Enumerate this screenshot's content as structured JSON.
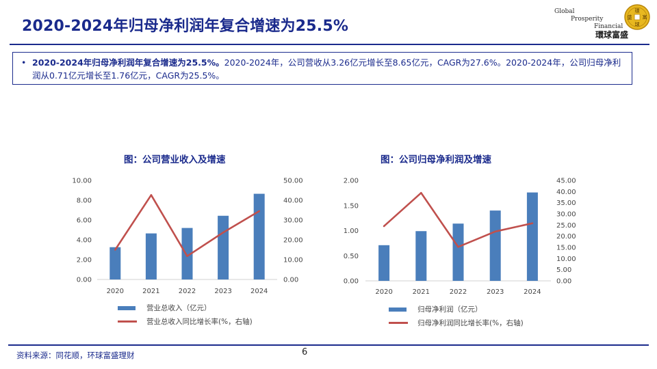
{
  "header": {
    "title": "2020-2024年归母净利润年复合增速为25.5%"
  },
  "logo": {
    "en_word1": "Global",
    "en_word2": "Prosperity",
    "en_word3": "Financial",
    "cn_name": "環球富盛",
    "coin_chars": [
      "環",
      "球",
      "富",
      "盛"
    ]
  },
  "summary": {
    "bullet": "•",
    "bold_text": "2020-2024年归母净利润年复合增速为25.5%。",
    "body_text": "2020-2024年，公司营收从3.26亿元增长至8.65亿元，CAGR为27.6%。2020-2024年，公司归母净利润从0.71亿元增长至1.76亿元，CAGR为25.5%。"
  },
  "chart_data": [
    {
      "type": "bar",
      "title": "图：公司营业收入及增速",
      "categories": [
        "2020",
        "2021",
        "2022",
        "2023",
        "2024"
      ],
      "series": [
        {
          "name": "营业总收入（亿元）",
          "kind": "bar",
          "axis": "left",
          "values": [
            3.26,
            4.65,
            5.2,
            6.43,
            8.65
          ]
        },
        {
          "name": "营业总收入同比增长率(%，右轴)",
          "kind": "line",
          "axis": "right",
          "values": [
            15.0,
            42.6,
            11.8,
            23.7,
            34.5
          ]
        }
      ],
      "y_left": {
        "ticks": [
          "0.00",
          "2.00",
          "4.00",
          "6.00",
          "8.00",
          "10.00"
        ],
        "range": [
          0,
          10
        ]
      },
      "y_right": {
        "ticks": [
          "0.00",
          "10.00",
          "20.00",
          "30.00",
          "40.00",
          "50.00"
        ],
        "range": [
          0,
          50
        ]
      },
      "colors": {
        "bar": "#4a7ebb",
        "line": "#c0504d"
      },
      "legend_position": "bottom"
    },
    {
      "type": "bar",
      "title": "图：公司归母净利润及增速",
      "categories": [
        "2020",
        "2021",
        "2022",
        "2023",
        "2024"
      ],
      "series": [
        {
          "name": "归母净利润（亿元）",
          "kind": "bar",
          "axis": "left",
          "values": [
            0.71,
            0.99,
            1.14,
            1.4,
            1.76
          ]
        },
        {
          "name": "归母净利润同比增长率(%，右轴)",
          "kind": "line",
          "axis": "right",
          "values": [
            24.5,
            39.4,
            15.2,
            22.1,
            25.8
          ]
        }
      ],
      "y_left": {
        "ticks": [
          "0.00",
          "0.50",
          "1.00",
          "1.50",
          "2.00"
        ],
        "range": [
          0,
          2
        ]
      },
      "y_right": {
        "ticks": [
          "0.00",
          "5.00",
          "10.00",
          "15.00",
          "20.00",
          "25.00",
          "30.00",
          "35.00",
          "40.00",
          "45.00"
        ],
        "range": [
          0,
          45
        ]
      },
      "colors": {
        "bar": "#4a7ebb",
        "line": "#c0504d"
      },
      "legend_position": "bottom"
    }
  ],
  "footer": {
    "source": "资料来源：同花顺，环球富盛理财",
    "page_number": "6"
  }
}
